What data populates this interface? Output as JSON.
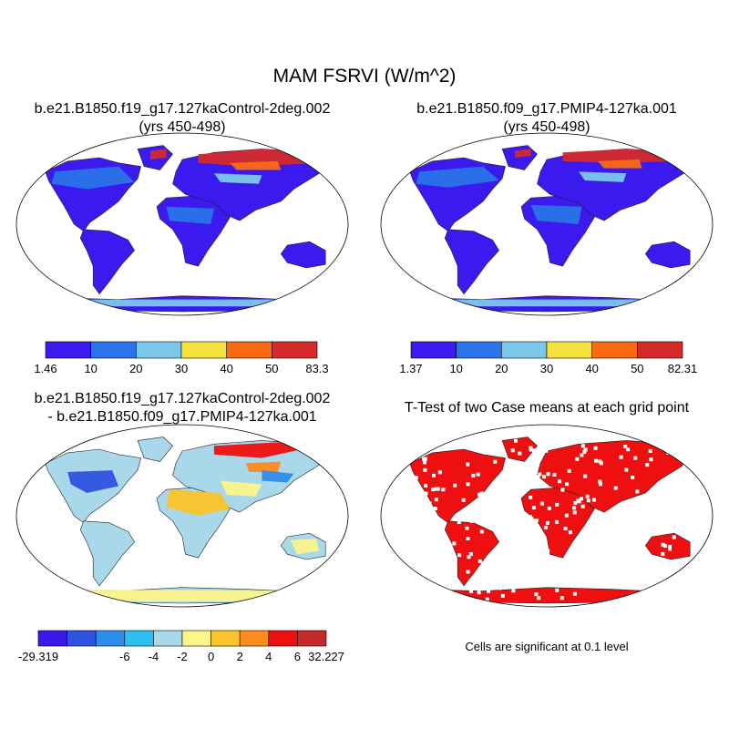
{
  "title": "MAM FSRVI (W/m^2)",
  "panels": [
    {
      "title_line1": "b.e21.B1850.f19_g17.127kaControl-2deg.002",
      "title_line2": "(yrs 450-498)",
      "colorbar": {
        "labels": [
          "1.46",
          "10",
          "20",
          "30",
          "40",
          "50",
          "83.3"
        ],
        "colors": [
          "#3a1aef",
          "#2a73e8",
          "#7cc8ea",
          "#f7e340",
          "#fa6a14",
          "#d42a2a"
        ]
      }
    },
    {
      "title_line1": "b.e21.B1850.f09_g17.PMIP4-127ka.001",
      "title_line2": "(yrs 450-498)",
      "colorbar": {
        "labels": [
          "1.37",
          "10",
          "20",
          "30",
          "40",
          "50",
          "82.31"
        ],
        "colors": [
          "#3a1aef",
          "#2a73e8",
          "#7cc8ea",
          "#f7e340",
          "#fa6a14",
          "#d42a2a"
        ]
      }
    },
    {
      "title_line1": "b.e21.B1850.f19_g17.127kaControl-2deg.002",
      "title_line2": "- b.e21.B1850.f09_g17.PMIP4-127ka.001",
      "colorbar": {
        "labels": [
          "-29.319",
          "-6",
          "-4",
          "-2",
          "0",
          "2",
          "4",
          "6",
          "32.227"
        ],
        "colors": [
          "#3b1ae9",
          "#2f52e0",
          "#2e8cea",
          "#2fc0ef",
          "#a9d8ea",
          "#fbf58a",
          "#fbc42a",
          "#fb8a1f",
          "#ee1010",
          "#c42a2a"
        ]
      }
    },
    {
      "title_line1": "T-Test of two Case means at each grid point",
      "note": "Cells are significant at 0.1 level"
    }
  ],
  "chart_data": [
    {
      "type": "heatmap",
      "title": "b.e21.B1850.f19_g17.127kaControl-2deg.002 (yrs 450-498)",
      "projection": "Robinson",
      "levels": [
        1.46,
        10,
        20,
        30,
        40,
        50,
        83.3
      ],
      "fill_by_region": {
        "tropics_and_midlatitudes": "1.46-10",
        "africa_and_asia_patches": "10-20",
        "northern_high_latitudes": "40-83.3",
        "antarctica": "10-20"
      }
    },
    {
      "type": "heatmap",
      "title": "b.e21.B1850.f09_g17.PMIP4-127ka.001 (yrs 450-498)",
      "projection": "Robinson",
      "levels": [
        1.37,
        10,
        20,
        30,
        40,
        50,
        82.31
      ],
      "fill_by_region": {
        "tropics_and_midlatitudes": "1.37-10",
        "africa_and_asia_patches": "10-20",
        "northern_high_latitudes": "40-82.31",
        "antarctica": "10-20"
      }
    },
    {
      "type": "heatmap",
      "title": "difference",
      "projection": "Robinson",
      "levels": [
        -29.319,
        -6,
        -4,
        -2,
        0,
        2,
        4,
        6,
        32.227
      ],
      "fill_by_region": {
        "southern_continents": "-2-0",
        "north_africa_middle_east": "0-4",
        "northern_high_latitudes": "mixed -6 to 32.227",
        "antarctica": "0-2"
      }
    },
    {
      "type": "heatmap",
      "title": "T-Test of two Case means at each grid point",
      "projection": "Robinson",
      "significance_level": 0.1,
      "significant_color": "#ee1010"
    }
  ]
}
